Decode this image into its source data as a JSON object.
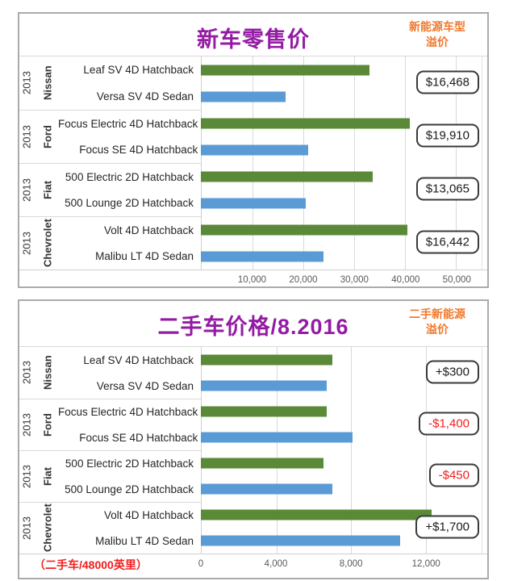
{
  "colors": {
    "title_purple": "#941ba4",
    "accent_orange": "#f0792d",
    "negative_red": "#f21d1d",
    "electric_bar_green": "#5a8a38",
    "gas_bar_blue": "#5b9bd5",
    "gridline_gray": "#d9d9d9"
  },
  "chart_data": [
    {
      "type": "bar",
      "orientation": "horizontal",
      "title": "新车零售价",
      "side_note": [
        "新能源车型",
        "溢价"
      ],
      "xlabel": "",
      "xlim": [
        0,
        55000
      ],
      "grid": true,
      "tick_labels": [
        "10,000",
        "20,000",
        "30,000",
        "40,000",
        "50,000"
      ],
      "tick_values": [
        10000,
        20000,
        30000,
        40000,
        50000
      ],
      "groups": [
        {
          "year": "2013",
          "brand": "Nissan",
          "premium": "$16,468",
          "premium_negative": false,
          "bars": [
            {
              "label": "Leaf SV 4D Hatchback",
              "value": 33000,
              "series": "electric"
            },
            {
              "label": "Versa SV 4D Sedan",
              "value": 16500,
              "series": "gas"
            }
          ]
        },
        {
          "year": "2013",
          "brand": "Ford",
          "premium": "$19,910",
          "premium_negative": false,
          "bars": [
            {
              "label": "Focus Electric 4D Hatchback",
              "value": 40800,
              "series": "electric"
            },
            {
              "label": "Focus SE 4D Hatchback",
              "value": 20900,
              "series": "gas"
            }
          ]
        },
        {
          "year": "2013",
          "brand": "Fiat",
          "premium": "$13,065",
          "premium_negative": false,
          "bars": [
            {
              "label": "500 Electric 2D Hatchback",
              "value": 33600,
              "series": "electric"
            },
            {
              "label": "500 Lounge 2D Hatchback",
              "value": 20500,
              "series": "gas"
            }
          ]
        },
        {
          "year": "2013",
          "brand": "Chevrolet",
          "premium": "$16,442",
          "premium_negative": false,
          "bars": [
            {
              "label": "Volt  4D Hatchback",
              "value": 40300,
              "series": "electric"
            },
            {
              "label": "Malibu LT 4D Sedan",
              "value": 23900,
              "series": "gas"
            }
          ]
        }
      ]
    },
    {
      "type": "bar",
      "orientation": "horizontal",
      "title": "二手车价格/8.2016",
      "side_note": [
        "二手新能源",
        "溢价"
      ],
      "footnote": "（二手车/48000英里）",
      "xlabel": "",
      "xlim": [
        0,
        15000
      ],
      "grid": true,
      "tick_labels": [
        "0",
        "4,000",
        "8,000",
        "12,000"
      ],
      "tick_values": [
        0,
        4000,
        8000,
        12000
      ],
      "groups": [
        {
          "year": "2013",
          "brand": "Nissan",
          "premium": "+$300",
          "premium_negative": false,
          "bars": [
            {
              "label": "Leaf SV 4D Hatchback",
              "value": 7000,
              "series": "electric"
            },
            {
              "label": "Versa SV 4D Sedan",
              "value": 6700,
              "series": "gas"
            }
          ]
        },
        {
          "year": "2013",
          "brand": "Ford",
          "premium": "-$1,400",
          "premium_negative": true,
          "bars": [
            {
              "label": "Focus Electric 4D Hatchback",
              "value": 6700,
              "series": "electric"
            },
            {
              "label": "Focus SE 4D Hatchback",
              "value": 8100,
              "series": "gas"
            }
          ]
        },
        {
          "year": "2013",
          "brand": "Fiat",
          "premium": "-$450",
          "premium_negative": true,
          "bars": [
            {
              "label": "500 Electric 2D Hatchback",
              "value": 6550,
              "series": "electric"
            },
            {
              "label": "500 Lounge 2D Hatchback",
              "value": 7000,
              "series": "gas"
            }
          ]
        },
        {
          "year": "2013",
          "brand": "Chevrolet",
          "premium": "+$1,700",
          "premium_negative": false,
          "bars": [
            {
              "label": "Volt  4D Hatchback",
              "value": 12300,
              "series": "electric"
            },
            {
              "label": "Malibu LT 4D Sedan",
              "value": 10600,
              "series": "gas"
            }
          ]
        }
      ]
    }
  ]
}
